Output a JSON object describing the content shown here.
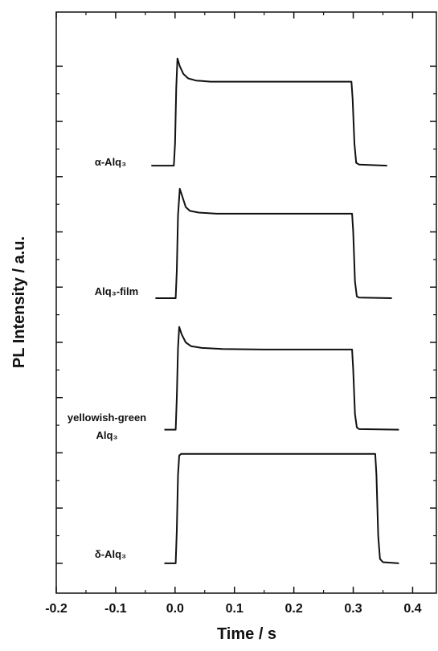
{
  "chart_data": {
    "type": "line",
    "x_label": "Time / s",
    "y_label": "PL Intensity / a.u.",
    "xlim": [
      -0.2,
      0.44
    ],
    "xticks": [
      -0.2,
      -0.1,
      {
        "value": 0,
        "label": "0.0"
      },
      0.1,
      0.2,
      0.3,
      0.4
    ],
    "ylim": [
      0.46,
      10.98
    ],
    "yticks": [
      1,
      2,
      3,
      4,
      5,
      6,
      7,
      8,
      9,
      10
    ],
    "series": [
      {
        "name": "α-Alq₃",
        "color": "#111111",
        "x": [
          -0.04,
          -0.002,
          0.0,
          0.002,
          0.004,
          0.008,
          0.014,
          0.022,
          0.035,
          0.06,
          0.1,
          0.2,
          0.297,
          0.299,
          0.302,
          0.305,
          0.31,
          0.357
        ],
        "values": [
          8.2,
          8.2,
          8.6,
          9.6,
          10.14,
          10.0,
          9.86,
          9.78,
          9.74,
          9.72,
          9.72,
          9.72,
          9.72,
          9.4,
          8.6,
          8.25,
          8.22,
          8.2
        ]
      },
      {
        "name": "Alq₃-film",
        "color": "#111111",
        "x": [
          -0.033,
          0.001,
          0.003,
          0.005,
          0.008,
          0.012,
          0.018,
          0.025,
          0.04,
          0.07,
          0.1,
          0.2,
          0.298,
          0.3,
          0.303,
          0.306,
          0.31,
          0.365
        ],
        "values": [
          5.8,
          5.8,
          6.3,
          7.3,
          7.78,
          7.65,
          7.45,
          7.38,
          7.35,
          7.33,
          7.33,
          7.33,
          7.33,
          7.0,
          6.1,
          5.83,
          5.81,
          5.8
        ]
      },
      {
        "name": "yellowish-green Alq₃",
        "color": "#111111",
        "x": [
          -0.018,
          0.001,
          0.003,
          0.005,
          0.007,
          0.011,
          0.018,
          0.027,
          0.045,
          0.08,
          0.15,
          0.25,
          0.298,
          0.3,
          0.303,
          0.306,
          0.31,
          0.377
        ],
        "values": [
          3.42,
          3.42,
          4.0,
          4.9,
          5.28,
          5.15,
          5.0,
          4.93,
          4.9,
          4.88,
          4.87,
          4.87,
          4.87,
          4.5,
          3.7,
          3.46,
          3.43,
          3.42
        ]
      },
      {
        "name": "δ-Alq₃",
        "color": "#111111",
        "x": [
          -0.018,
          0.001,
          0.003,
          0.005,
          0.007,
          0.01,
          0.1,
          0.2,
          0.3,
          0.337,
          0.339,
          0.342,
          0.345,
          0.35,
          0.377
        ],
        "values": [
          1.0,
          1.0,
          1.6,
          2.6,
          2.95,
          2.98,
          2.98,
          2.98,
          2.98,
          2.98,
          2.6,
          1.5,
          1.08,
          1.02,
          1.0
        ]
      }
    ]
  }
}
